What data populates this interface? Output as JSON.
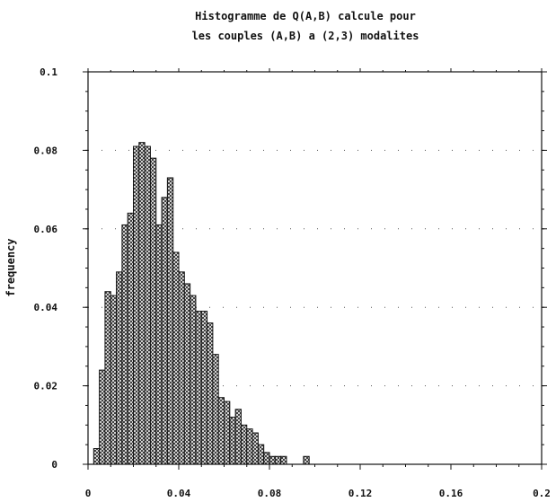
{
  "chart_data": {
    "type": "bar",
    "title_lines": [
      "Histogramme de Q(A,B) calcule pour",
      "les couples (A,B) a (2,3) modalites"
    ],
    "xlabel": "",
    "ylabel": "frequency",
    "xlim": [
      0,
      0.2
    ],
    "ylim": [
      0,
      0.1
    ],
    "x_ticks": [
      "0",
      "0.04",
      "0.08",
      "0.12",
      "0.16",
      "0.2"
    ],
    "y_ticks": [
      "0",
      "0.02",
      "0.04",
      "0.06",
      "0.08",
      "0.1"
    ],
    "bin_width": 0.0025,
    "bin_starts": [
      0.0025,
      0.005,
      0.0075,
      0.01,
      0.0125,
      0.015,
      0.0175,
      0.02,
      0.0225,
      0.025,
      0.0275,
      0.03,
      0.0325,
      0.035,
      0.0375,
      0.04,
      0.0425,
      0.045,
      0.0475,
      0.05,
      0.0525,
      0.055,
      0.0575,
      0.06,
      0.0625,
      0.065,
      0.0675,
      0.07,
      0.0725,
      0.075,
      0.0775,
      0.08,
      0.0825,
      0.085,
      0.0875,
      0.09,
      0.0925,
      0.095,
      0.0975,
      0.1,
      0.1025,
      0.105,
      0.1075,
      0.11,
      0.1125,
      0.115,
      0.1175
    ],
    "values": [
      0.004,
      0.024,
      0.044,
      0.043,
      0.049,
      0.061,
      0.064,
      0.081,
      0.082,
      0.081,
      0.078,
      0.061,
      0.068,
      0.073,
      0.054,
      0.049,
      0.046,
      0.043,
      0.039,
      0.039,
      0.036,
      0.028,
      0.017,
      0.016,
      0.012,
      0.014,
      0.01,
      0.009,
      0.008,
      0.005,
      0.003,
      0.002,
      0.002,
      0.002,
      0.0,
      0.0,
      0.0,
      0.002,
      0.0,
      0.0,
      0.0,
      0.0,
      0.0,
      0.0,
      0.0,
      0.0,
      0.0
    ],
    "grid": "dotted",
    "legend": "none",
    "colors": {
      "bar_fill_pattern": "crosshatch",
      "ink": "#111111",
      "background": "#ffffff"
    }
  }
}
